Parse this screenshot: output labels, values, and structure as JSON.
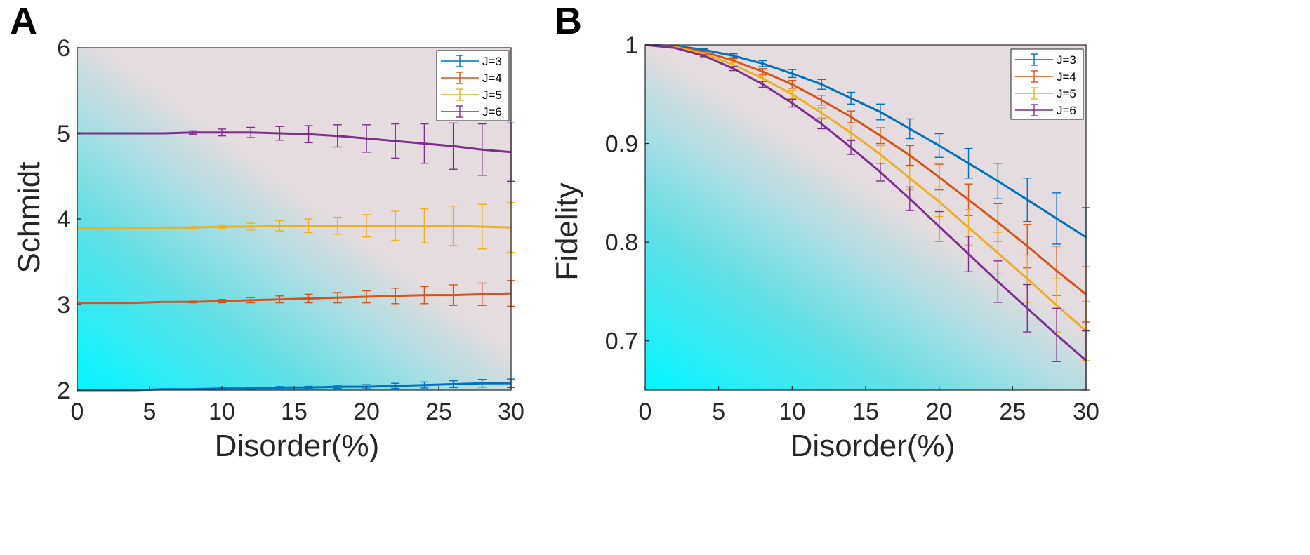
{
  "chart_data": [
    {
      "type": "line",
      "panel_label": "A",
      "title": "",
      "xlabel": "Disorder(%)",
      "ylabel": "Schmidt",
      "xlim": [
        0,
        30
      ],
      "ylim": [
        2,
        6
      ],
      "xticks": [
        "0",
        "5",
        "10",
        "15",
        "20",
        "25",
        "30"
      ],
      "yticks": [
        "2",
        "3",
        "4",
        "5",
        "6"
      ],
      "legend_position": "top-right",
      "error_bars": true,
      "x": [
        0,
        2,
        4,
        6,
        8,
        10,
        12,
        14,
        16,
        18,
        20,
        22,
        24,
        26,
        28,
        30
      ],
      "series": [
        {
          "name": "J=3",
          "color": "#0072BD",
          "values": [
            2.0,
            2.0,
            2.0,
            2.01,
            2.01,
            2.02,
            2.02,
            2.03,
            2.03,
            2.04,
            2.04,
            2.05,
            2.06,
            2.07,
            2.08,
            2.08
          ],
          "errors": [
            0,
            0,
            0,
            0,
            0.005,
            0.008,
            0.01,
            0.012,
            0.015,
            0.02,
            0.024,
            0.03,
            0.035,
            0.04,
            0.045,
            0.05
          ]
        },
        {
          "name": "J=4",
          "color": "#D95319",
          "values": [
            3.02,
            3.02,
            3.02,
            3.03,
            3.03,
            3.04,
            3.05,
            3.06,
            3.07,
            3.08,
            3.09,
            3.1,
            3.11,
            3.11,
            3.12,
            3.13
          ],
          "errors": [
            0,
            0,
            0,
            0,
            0.01,
            0.02,
            0.03,
            0.04,
            0.05,
            0.06,
            0.07,
            0.09,
            0.1,
            0.12,
            0.13,
            0.15
          ]
        },
        {
          "name": "J=5",
          "color": "#EDB120",
          "values": [
            3.89,
            3.89,
            3.89,
            3.9,
            3.9,
            3.91,
            3.91,
            3.92,
            3.92,
            3.92,
            3.92,
            3.92,
            3.92,
            3.92,
            3.91,
            3.9
          ],
          "errors": [
            0,
            0,
            0,
            0,
            0.01,
            0.02,
            0.04,
            0.06,
            0.08,
            0.1,
            0.13,
            0.17,
            0.2,
            0.23,
            0.26,
            0.29
          ]
        },
        {
          "name": "J=6",
          "color": "#7E2F8E",
          "values": [
            5.0,
            5.0,
            5.0,
            5.0,
            5.01,
            5.01,
            5.01,
            5.0,
            4.99,
            4.97,
            4.94,
            4.91,
            4.88,
            4.85,
            4.81,
            4.78
          ],
          "errors": [
            0,
            0,
            0,
            0,
            0.02,
            0.04,
            0.06,
            0.08,
            0.1,
            0.13,
            0.16,
            0.2,
            0.23,
            0.27,
            0.3,
            0.34
          ]
        }
      ]
    },
    {
      "type": "line",
      "panel_label": "B",
      "title": "",
      "xlabel": "Disorder(%)",
      "ylabel": "Fidelity",
      "xlim": [
        0,
        30
      ],
      "ylim": [
        0.65,
        1.0
      ],
      "xticks": [
        "0",
        "5",
        "10",
        "15",
        "20",
        "25",
        "30"
      ],
      "yticks": [
        "0.7",
        "0.8",
        "0.9",
        "1"
      ],
      "legend_position": "top-right",
      "error_bars": true,
      "x": [
        0,
        2,
        4,
        6,
        8,
        10,
        12,
        14,
        16,
        18,
        20,
        22,
        24,
        26,
        28,
        30
      ],
      "series": [
        {
          "name": "J=3",
          "color": "#0072BD",
          "values": [
            1.0,
            0.999,
            0.995,
            0.989,
            0.981,
            0.971,
            0.96,
            0.946,
            0.932,
            0.915,
            0.898,
            0.88,
            0.862,
            0.843,
            0.824,
            0.805
          ],
          "errors": [
            0,
            0,
            0.001,
            0.002,
            0.003,
            0.004,
            0.005,
            0.006,
            0.008,
            0.01,
            0.012,
            0.015,
            0.018,
            0.022,
            0.026,
            0.03
          ]
        },
        {
          "name": "J=4",
          "color": "#D95319",
          "values": [
            1.0,
            0.998,
            0.993,
            0.984,
            0.973,
            0.96,
            0.944,
            0.927,
            0.908,
            0.888,
            0.866,
            0.843,
            0.82,
            0.796,
            0.771,
            0.747
          ],
          "errors": [
            0,
            0,
            0.001,
            0.002,
            0.003,
            0.004,
            0.005,
            0.006,
            0.008,
            0.01,
            0.013,
            0.016,
            0.019,
            0.022,
            0.025,
            0.028
          ]
        },
        {
          "name": "J=5",
          "color": "#EDB120",
          "values": [
            1.0,
            0.998,
            0.991,
            0.98,
            0.966,
            0.95,
            0.931,
            0.911,
            0.889,
            0.865,
            0.841,
            0.815,
            0.789,
            0.763,
            0.736,
            0.71
          ],
          "errors": [
            0,
            0,
            0.001,
            0.002,
            0.003,
            0.004,
            0.005,
            0.007,
            0.009,
            0.012,
            0.015,
            0.018,
            0.021,
            0.024,
            0.027,
            0.03
          ]
        },
        {
          "name": "J=6",
          "color": "#7E2F8E",
          "values": [
            1.0,
            0.997,
            0.989,
            0.976,
            0.96,
            0.941,
            0.92,
            0.896,
            0.871,
            0.844,
            0.816,
            0.788,
            0.76,
            0.733,
            0.706,
            0.68
          ],
          "errors": [
            0,
            0,
            0.001,
            0.002,
            0.003,
            0.004,
            0.005,
            0.007,
            0.009,
            0.012,
            0.015,
            0.018,
            0.021,
            0.024,
            0.027,
            0.03
          ]
        }
      ]
    }
  ]
}
